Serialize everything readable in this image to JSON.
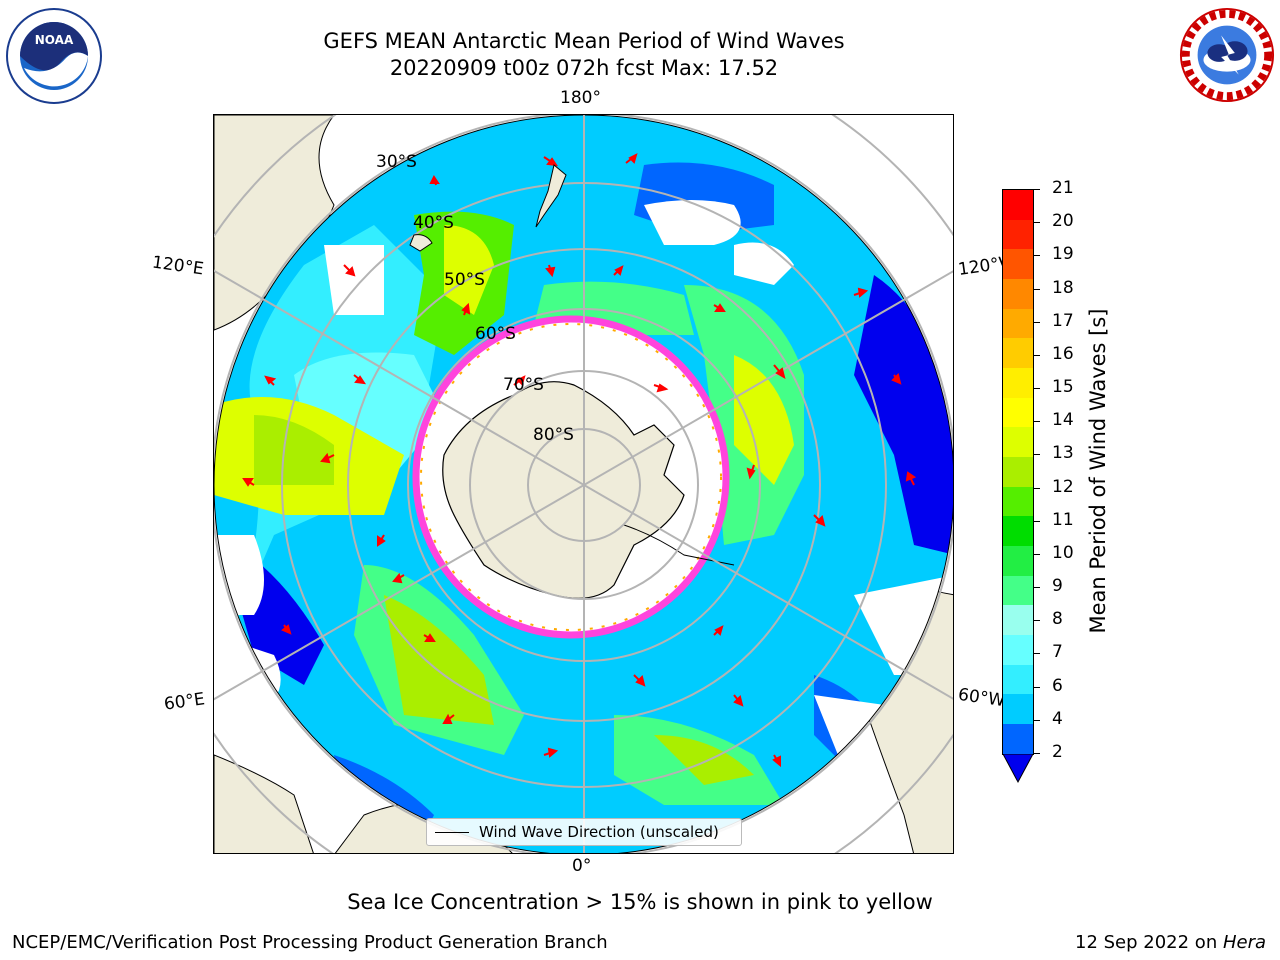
{
  "header": {
    "title_line1": "GEFS MEAN Antarctic Mean Period of Wind Waves",
    "title_line2": "20220909 t00z 072h fcst   Max: 17.52"
  },
  "logos": {
    "left": "NOAA",
    "left_ring_text": "NATIONAL OCEANIC AND ATMOSPHERIC ADMINISTRATION · U.S. DEPARTMENT OF COMMERCE",
    "right_ring_text": "NATIONAL WEATHER SERVICE"
  },
  "map": {
    "longitude_labels": {
      "top": "180°",
      "bottom": "0°",
      "upper_left": "120°E",
      "upper_right": "120°W",
      "lower_left": "60°E",
      "lower_right": "60°W"
    },
    "latitude_labels": [
      "30°S",
      "40°S",
      "50°S",
      "60°S",
      "70°S",
      "80°S"
    ],
    "legend_label": "Wind Wave Direction (unscaled)",
    "colors": {
      "land": "#efecda",
      "ocean_no_data": "#ffffff",
      "sea_ice": "#ff44dd",
      "arrow": "#ff0000",
      "grid": "#b4b4b4"
    }
  },
  "colorbar": {
    "label": "Mean Period of Wind Waves [s]",
    "ticks": [
      "2",
      "4",
      "6",
      "7",
      "8",
      "9",
      "10",
      "11",
      "12",
      "13",
      "14",
      "15",
      "16",
      "17",
      "18",
      "19",
      "20",
      "21"
    ],
    "colors": [
      "#0066ff",
      "#00ccff",
      "#33eeff",
      "#66ffff",
      "#99ffee",
      "#44ff88",
      "#22ee44",
      "#00dd00",
      "#55ee00",
      "#aaee00",
      "#ddff00",
      "#ffff00",
      "#ffee00",
      "#ffcc00",
      "#ffaa00",
      "#ff8800",
      "#ff5500",
      "#ff2200",
      "#ff0000"
    ],
    "extend_color": "#0000ee"
  },
  "annotation": "Sea Ice Concentration > 15% is shown in pink to yellow",
  "footer": {
    "left": "NCEP/EMC/Verification Post Processing Product Generation Branch",
    "date": "12 Sep 2022 on ",
    "machine": "Hera"
  }
}
